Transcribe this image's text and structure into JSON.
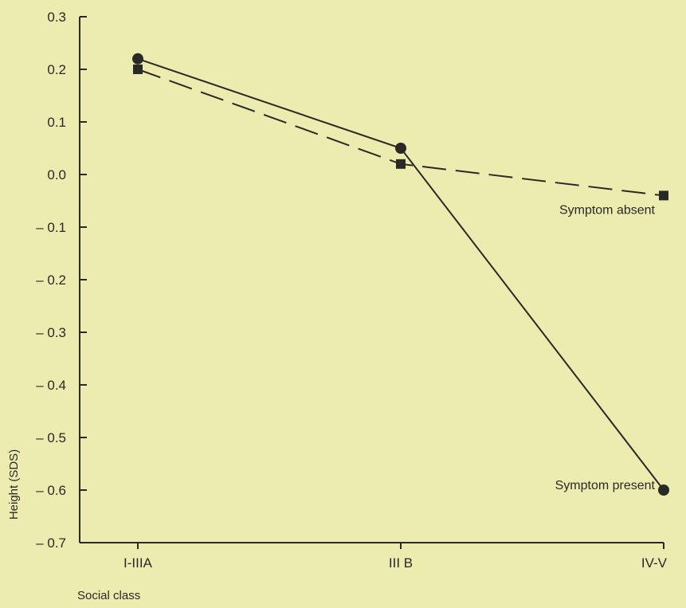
{
  "chart_data": {
    "type": "line",
    "title": "",
    "xlabel": "Social class",
    "ylabel": "Height (SDS)",
    "categories": [
      "I-IIIA",
      "III B",
      "IV-V"
    ],
    "ylim": [
      -0.7,
      0.3
    ],
    "yticks": [
      0.3,
      0.2,
      0.1,
      0.0,
      -0.1,
      -0.2,
      -0.3,
      -0.4,
      -0.5,
      -0.6,
      -0.7
    ],
    "ytick_labels": [
      "0.3",
      "0.2",
      "0.1",
      "0.0",
      "– 0.1",
      "– 0.2",
      "– 0.3",
      "– 0.4",
      "– 0.5",
      "– 0.6",
      "– 0.7"
    ],
    "grid": false,
    "series": [
      {
        "name": "Symptom present",
        "values": [
          0.22,
          0.05,
          -0.6
        ],
        "marker": "circle",
        "line": "solid",
        "color": "#2a2a25"
      },
      {
        "name": "Symptom absent",
        "values": [
          0.2,
          0.02,
          -0.04
        ],
        "marker": "square",
        "line": "dashed",
        "color": "#2a2a25"
      }
    ]
  }
}
